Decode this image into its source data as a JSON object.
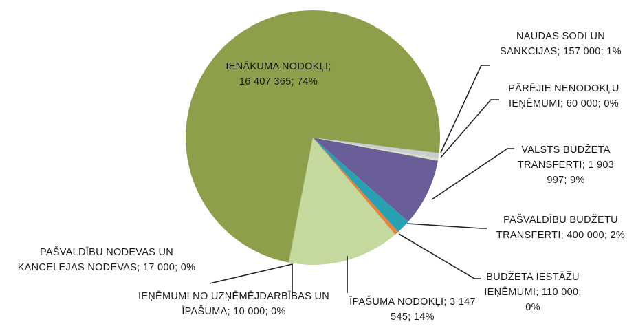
{
  "chart_data": {
    "type": "pie",
    "categories": [
      "NAUDAS SODI UN SANKCIJAS;",
      "PĀRĒJIE NENODOKĻU IEŅĒMUMI;",
      "VALSTS BUDŽETA TRANSFERTI;",
      "PAŠVALDĪBU BUDŽETU TRANSFERTI;",
      "BUDŽETA IESTĀŽU IEŅĒMUMI;",
      "ĪPAŠUMA NODOKĻI;",
      "IEŅĒMUMI NO UZŅĒMĒJDARBĪBAS UN ĪPAŠUMA;",
      "PAŠVALDĪBU NODEVAS UN KANCELEJAS NODEVAS;",
      "IENĀKUMA NODOKĻI;"
    ],
    "values": [
      157000,
      60000,
      1903997,
      400000,
      110000,
      3147545,
      10000,
      17000,
      16407365
    ],
    "value_labels": [
      "157 000; 1%",
      "60 000; 0%",
      "1 903 997; 9%",
      "400 000; 2%",
      "110 000; 0%",
      "3 147 545; 14%",
      "10 000; 0%",
      "17 000; 0%",
      "16 407 365; 74%"
    ],
    "colors": [
      "#c9ced3",
      "#d9e3c0",
      "#6a5e98",
      "#2aa0b3",
      "#e5843b",
      "#c5d89d",
      "#b8c98a",
      "#a9b978",
      "#8e9f4c"
    ]
  }
}
